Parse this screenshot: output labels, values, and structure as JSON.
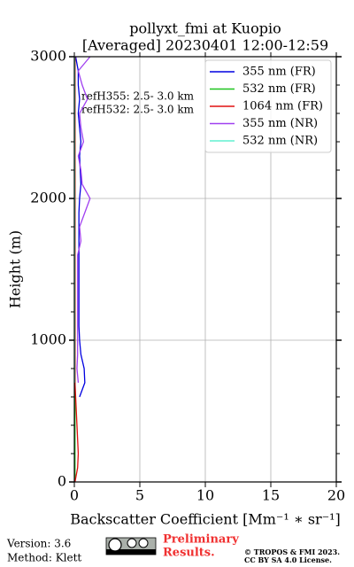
{
  "chart_data": {
    "type": "line",
    "title": "pollyxt_fmi at Kuopio",
    "subtitle": "[Averaged] 20230401 12:00-12:59",
    "x_label": "Backscatter Coefficient [Mm⁻¹ ∗ sr⁻¹]",
    "y_label": "Height (m)",
    "annotations": [
      "refH355:  2.5- 3.0 km",
      "refH532:  2.5- 3.0 km"
    ],
    "heights": [
      0,
      100,
      200,
      300,
      400,
      500,
      600,
      700,
      800,
      900,
      1000,
      1100,
      1200,
      1300,
      1400,
      1500,
      1600,
      1700,
      1800,
      1900,
      2000,
      2100,
      2200,
      2300,
      2400,
      2500,
      2600,
      2700,
      2800,
      2900,
      3000
    ],
    "series": [
      {
        "name": "355 nm (FR)",
        "color": "#0000e0",
        "values": [
          null,
          null,
          null,
          null,
          null,
          null,
          0.4,
          0.8,
          0.75,
          0.5,
          0.4,
          0.35,
          0.35,
          0.35,
          0.35,
          0.35,
          0.35,
          0.35,
          0.35,
          0.35,
          0.4,
          0.5,
          0.45,
          0.4,
          0.5,
          0.4,
          0.3,
          0.4,
          0.3,
          0.3,
          0.1
        ]
      },
      {
        "name": "532 nm (FR)",
        "color": "#1ec41e",
        "values": [
          0.05,
          0.05,
          0.05,
          0.05,
          0.05,
          0.05,
          0.05,
          0.05,
          0.05,
          0.05,
          0.05,
          0.05,
          0.05,
          0.05,
          0.05,
          0.05,
          0.05,
          0.05,
          0.05,
          0.05,
          0.05,
          0.05,
          0.05,
          0.05,
          0.05,
          0.05,
          0.05,
          0.05,
          0.05,
          0.05,
          0.05
        ]
      },
      {
        "name": "1064 nm (FR)",
        "color": "#e01010",
        "values": [
          0.05,
          0.25,
          0.3,
          0.25,
          0.2,
          0.15,
          0.1,
          0.05,
          0.05,
          0.05,
          0.05,
          0.05,
          0.05,
          0.05,
          0.05,
          0.05,
          0.05,
          0.05,
          0.05,
          0.05,
          0.05,
          0.05,
          0.05,
          0.05,
          0.05,
          0.05,
          0.05,
          0.05,
          0.05,
          0.05,
          0.05
        ]
      },
      {
        "name": "355 nm (NR)",
        "color": "#a040f0",
        "values": [
          null,
          null,
          null,
          null,
          null,
          null,
          null,
          0.3,
          0.2,
          0.25,
          0.25,
          0.25,
          0.25,
          0.25,
          0.25,
          0.25,
          0.25,
          0.5,
          0.4,
          0.8,
          1.2,
          0.6,
          0.5,
          0.3,
          0.7,
          0.5,
          0.4,
          1.0,
          0.6,
          0.3,
          1.2
        ]
      },
      {
        "name": "532 nm (NR)",
        "color": "#60f0d0",
        "values": [
          null,
          null,
          null,
          null,
          null,
          null,
          null,
          0.02,
          0.02,
          0.02,
          0.02,
          0.02,
          0.02,
          0.02,
          0.02,
          0.02,
          0.02,
          0.02,
          0.02,
          0.02,
          0.02,
          0.02,
          0.02,
          0.02,
          0.02,
          0.02,
          0.02,
          0.02,
          0.02,
          0.02,
          0.02
        ]
      }
    ],
    "xlim": [
      0,
      20
    ],
    "xticks": [
      0,
      5,
      10,
      15,
      20
    ],
    "ylim": [
      0,
      3000
    ],
    "yticks": [
      0,
      1000,
      2000,
      3000
    ],
    "grid": true,
    "legend": "upper right"
  },
  "footer": {
    "version": "Version: 3.6",
    "method": "Method: Klett",
    "notice": [
      "Preliminary",
      "Results."
    ],
    "copyright": [
      "© TROPOS & FMI 2023.",
      "CC BY SA 4.0 License."
    ]
  }
}
